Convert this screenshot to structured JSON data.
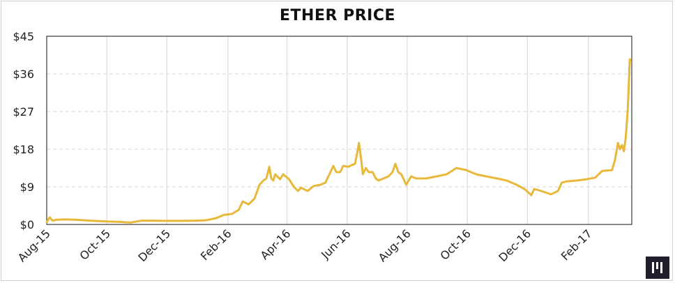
{
  "chart_data": {
    "type": "line",
    "title": "ETHER PRICE",
    "xlabel": "",
    "ylabel": "",
    "x_tick_labels": [
      "Aug-15",
      "Oct-15",
      "Dec-15",
      "Feb-16",
      "Apr-16",
      "Jun-16",
      "Aug-16",
      "Oct-16",
      "Dec-16",
      "Feb-17"
    ],
    "y_tick_labels": [
      "$0",
      "$9",
      "$18",
      "$27",
      "$36",
      "$45"
    ],
    "y_ticks": [
      0,
      9,
      18,
      27,
      36,
      45
    ],
    "ylim": [
      0,
      45
    ],
    "xlim": [
      "2015-08-01",
      "2017-03-17"
    ],
    "grid": true,
    "line_color": "#E8B83A",
    "series": [
      {
        "points": [
          [
            "2015-08-01",
            0.5
          ],
          [
            "2015-08-04",
            1.7
          ],
          [
            "2015-08-07",
            0.9
          ],
          [
            "2015-08-10",
            1.1
          ],
          [
            "2015-08-20",
            1.2
          ],
          [
            "2015-09-01",
            1.1
          ],
          [
            "2015-09-15",
            0.9
          ],
          [
            "2015-10-01",
            0.7
          ],
          [
            "2015-10-15",
            0.6
          ],
          [
            "2015-10-25",
            0.45
          ],
          [
            "2015-11-05",
            0.9
          ],
          [
            "2015-11-15",
            0.9
          ],
          [
            "2015-12-01",
            0.85
          ],
          [
            "2015-12-15",
            0.85
          ],
          [
            "2015-12-30",
            0.9
          ],
          [
            "2016-01-10",
            1.0
          ],
          [
            "2016-01-20",
            1.5
          ],
          [
            "2016-01-28",
            2.3
          ],
          [
            "2016-02-05",
            2.5
          ],
          [
            "2016-02-12",
            3.5
          ],
          [
            "2016-02-16",
            5.5
          ],
          [
            "2016-02-22",
            4.8
          ],
          [
            "2016-02-28",
            6.2
          ],
          [
            "2016-03-04",
            9.5
          ],
          [
            "2016-03-08",
            10.5
          ],
          [
            "2016-03-11",
            11.0
          ],
          [
            "2016-03-14",
            13.8
          ],
          [
            "2016-03-16",
            11.0
          ],
          [
            "2016-03-18",
            10.5
          ],
          [
            "2016-03-20",
            12.0
          ],
          [
            "2016-03-25",
            10.8
          ],
          [
            "2016-03-28",
            12.0
          ],
          [
            "2016-04-03",
            10.8
          ],
          [
            "2016-04-08",
            9.0
          ],
          [
            "2016-04-12",
            8.0
          ],
          [
            "2016-04-15",
            8.8
          ],
          [
            "2016-04-22",
            8.0
          ],
          [
            "2016-04-28",
            9.2
          ],
          [
            "2016-05-05",
            9.5
          ],
          [
            "2016-05-10",
            10.0
          ],
          [
            "2016-05-15",
            12.5
          ],
          [
            "2016-05-18",
            14.0
          ],
          [
            "2016-05-21",
            12.5
          ],
          [
            "2016-05-25",
            12.5
          ],
          [
            "2016-05-28",
            14.0
          ],
          [
            "2016-06-02",
            13.8
          ],
          [
            "2016-06-06",
            14.2
          ],
          [
            "2016-06-09",
            14.5
          ],
          [
            "2016-06-12",
            18.0
          ],
          [
            "2016-06-13",
            19.5
          ],
          [
            "2016-06-15",
            16.0
          ],
          [
            "2016-06-17",
            12.0
          ],
          [
            "2016-06-20",
            13.5
          ],
          [
            "2016-06-23",
            12.5
          ],
          [
            "2016-06-27",
            12.5
          ],
          [
            "2016-06-30",
            11.0
          ],
          [
            "2016-07-03",
            10.5
          ],
          [
            "2016-07-08",
            11.0
          ],
          [
            "2016-07-13",
            11.5
          ],
          [
            "2016-07-17",
            12.5
          ],
          [
            "2016-07-20",
            14.5
          ],
          [
            "2016-07-23",
            12.5
          ],
          [
            "2016-07-26",
            12.0
          ],
          [
            "2016-07-31",
            9.5
          ],
          [
            "2016-08-05",
            11.5
          ],
          [
            "2016-08-10",
            11.0
          ],
          [
            "2016-08-20",
            11.0
          ],
          [
            "2016-08-31",
            11.5
          ],
          [
            "2016-09-10",
            12.0
          ],
          [
            "2016-09-20",
            13.5
          ],
          [
            "2016-09-30",
            13.0
          ],
          [
            "2016-10-10",
            12.0
          ],
          [
            "2016-10-20",
            11.5
          ],
          [
            "2016-10-31",
            11.0
          ],
          [
            "2016-11-10",
            10.5
          ],
          [
            "2016-11-20",
            9.5
          ],
          [
            "2016-11-28",
            8.5
          ],
          [
            "2016-12-05",
            7.0
          ],
          [
            "2016-12-08",
            8.5
          ],
          [
            "2016-12-15",
            8.0
          ],
          [
            "2016-12-25",
            7.2
          ],
          [
            "2017-01-01",
            8.0
          ],
          [
            "2017-01-05",
            10.0
          ],
          [
            "2017-01-10",
            10.3
          ],
          [
            "2017-01-20",
            10.5
          ],
          [
            "2017-01-30",
            10.8
          ],
          [
            "2017-02-08",
            11.2
          ],
          [
            "2017-02-15",
            12.8
          ],
          [
            "2017-02-25",
            13.0
          ],
          [
            "2017-02-28",
            15.5
          ],
          [
            "2017-03-03",
            19.5
          ],
          [
            "2017-03-05",
            18.0
          ],
          [
            "2017-03-07",
            19.0
          ],
          [
            "2017-03-09",
            17.5
          ],
          [
            "2017-03-11",
            21.0
          ],
          [
            "2017-03-13",
            28.0
          ],
          [
            "2017-03-15",
            39.5
          ],
          [
            "2017-03-16",
            39.0
          ]
        ]
      }
    ]
  }
}
